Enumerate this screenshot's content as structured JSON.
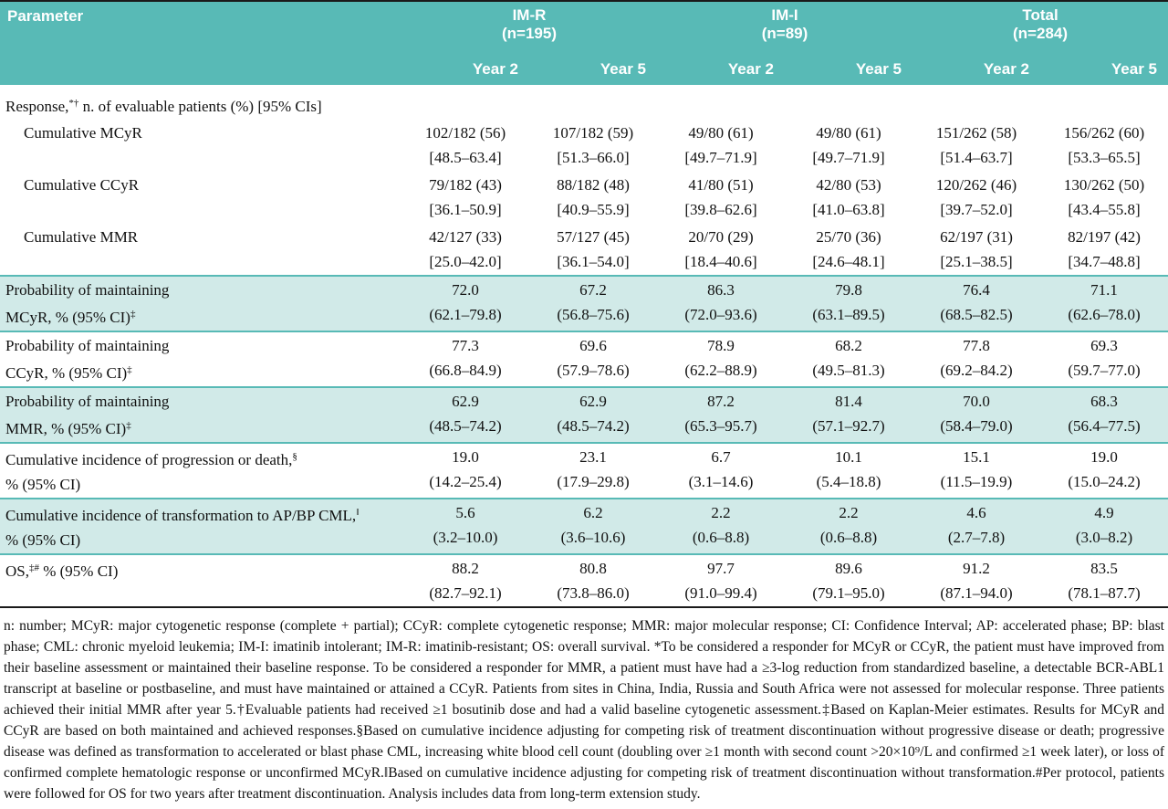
{
  "colors": {
    "header_teal": "#58BAB6",
    "row_shade": "#D1EAE8",
    "ink": "#111111"
  },
  "table": {
    "header": {
      "parameter_label": "Parameter",
      "groups": [
        {
          "name": "IM-R",
          "n": "(n=195)"
        },
        {
          "name": "IM-I",
          "n": "(n=89)"
        },
        {
          "name": "Total",
          "n": "(n=284)"
        }
      ],
      "year_labels": [
        "Year 2",
        "Year 5",
        "Year 2",
        "Year 5",
        "Year 2",
        "Year 5"
      ]
    },
    "rows": [
      {
        "type": "section",
        "shaded": false,
        "label_lines": [
          [
            {
              "t": "Response,"
            },
            {
              "s": "*†"
            },
            {
              "t": " n. of evaluable patients (%) [95% CIs]"
            }
          ]
        ]
      },
      {
        "type": "data",
        "shaded": false,
        "indent": true,
        "label_lines": [
          [
            {
              "t": "Cumulative MCyR"
            }
          ]
        ],
        "values": [
          [
            "102/182 (56)",
            "[48.5–63.4]"
          ],
          [
            "107/182 (59)",
            "[51.3–66.0]"
          ],
          [
            "49/80 (61)",
            "[49.7–71.9]"
          ],
          [
            "49/80 (61)",
            "[49.7–71.9]"
          ],
          [
            "151/262 (58)",
            "[51.4–63.7]"
          ],
          [
            "156/262 (60)",
            "[53.3–65.5]"
          ]
        ]
      },
      {
        "type": "data",
        "shaded": false,
        "indent": true,
        "label_lines": [
          [
            {
              "t": "Cumulative CCyR"
            }
          ]
        ],
        "values": [
          [
            "79/182 (43)",
            "[36.1–50.9]"
          ],
          [
            "88/182 (48)",
            "[40.9–55.9]"
          ],
          [
            "41/80 (51)",
            "[39.8–62.6]"
          ],
          [
            "42/80 (53)",
            "[41.0–63.8]"
          ],
          [
            "120/262 (46)",
            "[39.7–52.0]"
          ],
          [
            "130/262 (50)",
            "[43.4–55.8]"
          ]
        ]
      },
      {
        "type": "data",
        "shaded": false,
        "indent": true,
        "label_lines": [
          [
            {
              "t": "Cumulative MMR"
            }
          ]
        ],
        "values": [
          [
            "42/127 (33)",
            "[25.0–42.0]"
          ],
          [
            "57/127 (45)",
            "[36.1–54.0]"
          ],
          [
            "20/70 (29)",
            "[18.4–40.6]"
          ],
          [
            "25/70 (36)",
            "[24.6–48.1]"
          ],
          [
            "62/197 (31)",
            "[25.1–38.5]"
          ],
          [
            "82/197 (42)",
            "[34.7–48.8]"
          ]
        ]
      },
      {
        "type": "data",
        "shaded": true,
        "indent": false,
        "lined": true,
        "label_lines": [
          [
            {
              "t": "Probability of maintaining"
            }
          ],
          [
            {
              "t": "MCyR, % (95% CI)"
            },
            {
              "s": "‡"
            }
          ]
        ],
        "values": [
          [
            "72.0",
            "(62.1–79.8)"
          ],
          [
            "67.2",
            "(56.8–75.6)"
          ],
          [
            "86.3",
            "(72.0–93.6)"
          ],
          [
            "79.8",
            "(63.1–89.5)"
          ],
          [
            "76.4",
            "(68.5–82.5)"
          ],
          [
            "71.1",
            "(62.6–78.0)"
          ]
        ]
      },
      {
        "type": "data",
        "shaded": false,
        "indent": false,
        "lined": true,
        "label_lines": [
          [
            {
              "t": "Probability of maintaining"
            }
          ],
          [
            {
              "t": "CCyR, % (95% CI)"
            },
            {
              "s": "‡"
            }
          ]
        ],
        "values": [
          [
            "77.3",
            "(66.8–84.9)"
          ],
          [
            "69.6",
            "(57.9–78.6)"
          ],
          [
            "78.9",
            "(62.2–88.9)"
          ],
          [
            "68.2",
            "(49.5–81.3)"
          ],
          [
            "77.8",
            "(69.2–84.2)"
          ],
          [
            "69.3",
            "(59.7–77.0)"
          ]
        ]
      },
      {
        "type": "data",
        "shaded": true,
        "indent": false,
        "lined": true,
        "label_lines": [
          [
            {
              "t": "Probability of maintaining"
            }
          ],
          [
            {
              "t": "MMR, % (95% CI)"
            },
            {
              "s": "‡"
            }
          ]
        ],
        "values": [
          [
            "62.9",
            "(48.5–74.2)"
          ],
          [
            "62.9",
            "(48.5–74.2)"
          ],
          [
            "87.2",
            "(65.3–95.7)"
          ],
          [
            "81.4",
            "(57.1–92.7)"
          ],
          [
            "70.0",
            "(58.4–79.0)"
          ],
          [
            "68.3",
            "(56.4–77.5)"
          ]
        ]
      },
      {
        "type": "data",
        "shaded": false,
        "indent": false,
        "lined": true,
        "label_lines": [
          [
            {
              "t": "Cumulative incidence of progression or death,"
            },
            {
              "s": "§"
            }
          ],
          [
            {
              "t": "% (95% CI)"
            }
          ]
        ],
        "values": [
          [
            "19.0",
            "(14.2–25.4)"
          ],
          [
            "23.1",
            "(17.9–29.8)"
          ],
          [
            "6.7",
            "(3.1–14.6)"
          ],
          [
            "10.1",
            "(5.4–18.8)"
          ],
          [
            "15.1",
            "(11.5–19.9)"
          ],
          [
            "19.0",
            "(15.0–24.2)"
          ]
        ]
      },
      {
        "type": "data",
        "shaded": true,
        "indent": false,
        "lined": true,
        "label_lines": [
          [
            {
              "t": "Cumulative incidence of transformation to AP/BP CML,"
            },
            {
              "s": "‖"
            }
          ],
          [
            {
              "t": "% (95% CI)"
            }
          ]
        ],
        "values": [
          [
            "5.6",
            "(3.2–10.0)"
          ],
          [
            "6.2",
            "(3.6–10.6)"
          ],
          [
            "2.2",
            "(0.6–8.8)"
          ],
          [
            "2.2",
            "(0.6–8.8)"
          ],
          [
            "4.6",
            "(2.7–7.8)"
          ],
          [
            "4.9",
            "(3.0–8.2)"
          ]
        ]
      },
      {
        "type": "data",
        "shaded": false,
        "indent": false,
        "lined": true,
        "label_lines": [
          [
            {
              "t": "OS,"
            },
            {
              "s": "‡#"
            },
            {
              "t": " % (95% CI)"
            }
          ]
        ],
        "values": [
          [
            "88.2",
            "(82.7–92.1)"
          ],
          [
            "80.8",
            "(73.8–86.0)"
          ],
          [
            "97.7",
            "(91.0–99.4)"
          ],
          [
            "89.6",
            "(79.1–95.0)"
          ],
          [
            "91.2",
            "(87.1–94.0)"
          ],
          [
            "83.5",
            "(78.1–87.7)"
          ]
        ]
      }
    ]
  },
  "footnote": "n: number; MCyR: major cytogenetic response (complete + partial); CCyR: complete cytogenetic response; MMR: major molecular response; CI: Confidence Interval; AP: accelerated phase; BP: blast phase; CML: chronic myeloid leukemia; IM-I: imatinib intolerant; IM-R: imatinib-resistant; OS: overall survival. *To be considered a responder for MCyR or CCyR, the patient must have improved from their baseline assessment or maintained their baseline response. To be considered a responder for MMR, a patient must have had a ≥3-log reduction from standardized baseline, a detectable BCR-ABL1 transcript at baseline or postbaseline, and must have maintained or attained a CCyR. Patients from sites in China, India, Russia and South Africa were not assessed for molecular response. Three patients achieved their initial MMR after year 5.†Evaluable patients had received ≥1 bosutinib dose and had a valid baseline cytogenetic assessment.‡Based on Kaplan-Meier estimates. Results for MCyR and CCyR are based on both maintained and achieved responses.§Based on cumulative incidence adjusting for competing risk of treatment discontinuation without progressive disease or death; progressive disease was defined as transformation to accelerated or blast phase CML, increasing white blood cell count (doubling over ≥1 month with second count >20×10⁹/L and confirmed ≥1 week later), or loss of confirmed complete hematologic response or unconfirmed MCyR.‖Based on cumulative incidence adjusting for competing risk of treatment discontinuation without transformation.#Per protocol, patients were followed for OS for two years after treatment discontinuation. Analysis includes data from long-term extension study."
}
